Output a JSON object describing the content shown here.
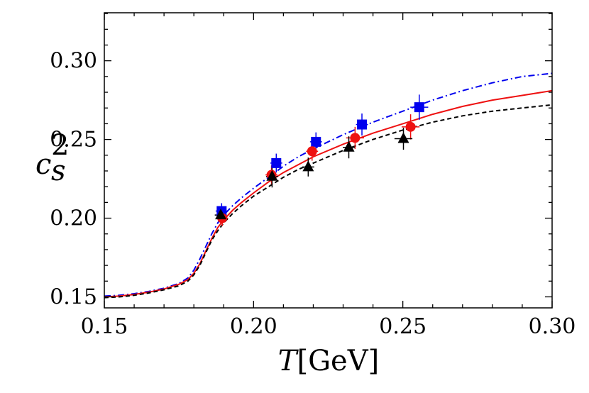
{
  "chart_data": {
    "type": "line",
    "title": "",
    "xlabel_italic": "T",
    "xlabel_unit": "[GeV]",
    "ylabel_base": "c",
    "ylabel_sub": "s",
    "ylabel_sup": "2",
    "xlim": [
      0.15,
      0.3
    ],
    "ylim": [
      0.143,
      0.3305
    ],
    "xticks": [
      0.15,
      0.2,
      0.25,
      0.3
    ],
    "yticks": [
      0.15,
      0.2,
      0.25,
      0.3
    ],
    "xtick_labels": [
      "0.15",
      "0.20",
      "0.25",
      "0.30"
    ],
    "ytick_labels": [
      "0.15",
      "0.20",
      "0.25",
      "0.30"
    ],
    "xminor_step": 0.01,
    "yminor_step": 0.01,
    "grid": false,
    "series": [
      {
        "name": "curve-blue",
        "color": "#0000ee",
        "style": "dashdot",
        "marker": "square",
        "curve": [
          [
            0.15,
            0.1505
          ],
          [
            0.155,
            0.151
          ],
          [
            0.16,
            0.152
          ],
          [
            0.165,
            0.1535
          ],
          [
            0.17,
            0.1555
          ],
          [
            0.175,
            0.1585
          ],
          [
            0.178,
            0.162
          ],
          [
            0.18,
            0.167
          ],
          [
            0.182,
            0.174
          ],
          [
            0.184,
            0.182
          ],
          [
            0.186,
            0.19
          ],
          [
            0.188,
            0.197
          ],
          [
            0.19,
            0.202
          ],
          [
            0.193,
            0.208
          ],
          [
            0.196,
            0.213
          ],
          [
            0.2,
            0.219
          ],
          [
            0.205,
            0.226
          ],
          [
            0.21,
            0.233
          ],
          [
            0.215,
            0.239
          ],
          [
            0.22,
            0.244
          ],
          [
            0.23,
            0.253
          ],
          [
            0.24,
            0.261
          ],
          [
            0.25,
            0.268
          ],
          [
            0.26,
            0.275
          ],
          [
            0.27,
            0.281
          ],
          [
            0.28,
            0.286
          ],
          [
            0.29,
            0.29
          ],
          [
            0.3,
            0.292
          ]
        ],
        "points": [
          {
            "x": 0.1893,
            "y": 0.2045,
            "xerr": 0.002,
            "yerr": 0.005
          },
          {
            "x": 0.2076,
            "y": 0.235,
            "xerr": 0.002,
            "yerr": 0.006
          },
          {
            "x": 0.2209,
            "y": 0.2485,
            "xerr": 0.002,
            "yerr": 0.006
          },
          {
            "x": 0.2363,
            "y": 0.2595,
            "xerr": 0.002,
            "yerr": 0.007
          },
          {
            "x": 0.2555,
            "y": 0.2705,
            "xerr": 0.003,
            "yerr": 0.008
          }
        ]
      },
      {
        "name": "curve-red",
        "color": "#ee1111",
        "style": "solid",
        "marker": "circle",
        "curve": [
          [
            0.15,
            0.15
          ],
          [
            0.155,
            0.1505
          ],
          [
            0.16,
            0.1515
          ],
          [
            0.165,
            0.153
          ],
          [
            0.17,
            0.155
          ],
          [
            0.175,
            0.158
          ],
          [
            0.178,
            0.161
          ],
          [
            0.18,
            0.165
          ],
          [
            0.182,
            0.171
          ],
          [
            0.184,
            0.179
          ],
          [
            0.186,
            0.187
          ],
          [
            0.188,
            0.194
          ],
          [
            0.19,
            0.199
          ],
          [
            0.193,
            0.205
          ],
          [
            0.196,
            0.21
          ],
          [
            0.2,
            0.216
          ],
          [
            0.205,
            0.223
          ],
          [
            0.21,
            0.229
          ],
          [
            0.215,
            0.234
          ],
          [
            0.22,
            0.239
          ],
          [
            0.23,
            0.247
          ],
          [
            0.24,
            0.254
          ],
          [
            0.25,
            0.26
          ],
          [
            0.26,
            0.266
          ],
          [
            0.27,
            0.271
          ],
          [
            0.28,
            0.275
          ],
          [
            0.29,
            0.278
          ],
          [
            0.3,
            0.281
          ]
        ],
        "points": [
          {
            "x": 0.1895,
            "y": 0.2,
            "xerr": 0.002,
            "yerr": 0.005
          },
          {
            "x": 0.206,
            "y": 0.2275,
            "xerr": 0.002,
            "yerr": 0.006
          },
          {
            "x": 0.2196,
            "y": 0.2425,
            "xerr": 0.002,
            "yerr": 0.006
          },
          {
            "x": 0.234,
            "y": 0.251,
            "xerr": 0.003,
            "yerr": 0.007
          },
          {
            "x": 0.2526,
            "y": 0.258,
            "xerr": 0.003,
            "yerr": 0.008
          }
        ]
      },
      {
        "name": "curve-black",
        "color": "#000000",
        "style": "dashed",
        "marker": "triangle",
        "curve": [
          [
            0.15,
            0.1495
          ],
          [
            0.155,
            0.15
          ],
          [
            0.16,
            0.151
          ],
          [
            0.165,
            0.1525
          ],
          [
            0.17,
            0.1545
          ],
          [
            0.175,
            0.157
          ],
          [
            0.178,
            0.16
          ],
          [
            0.18,
            0.164
          ],
          [
            0.182,
            0.17
          ],
          [
            0.184,
            0.178
          ],
          [
            0.186,
            0.186
          ],
          [
            0.188,
            0.192
          ],
          [
            0.19,
            0.197
          ],
          [
            0.193,
            0.203
          ],
          [
            0.196,
            0.208
          ],
          [
            0.2,
            0.214
          ],
          [
            0.205,
            0.22
          ],
          [
            0.21,
            0.226
          ],
          [
            0.215,
            0.231
          ],
          [
            0.22,
            0.235
          ],
          [
            0.23,
            0.243
          ],
          [
            0.24,
            0.25
          ],
          [
            0.25,
            0.256
          ],
          [
            0.26,
            0.261
          ],
          [
            0.27,
            0.265
          ],
          [
            0.28,
            0.268
          ],
          [
            0.29,
            0.27
          ],
          [
            0.3,
            0.272
          ]
        ],
        "points": [
          {
            "x": 0.189,
            "y": 0.202,
            "xerr": 0.002,
            "yerr": 0.005
          },
          {
            "x": 0.2062,
            "y": 0.2265,
            "xerr": 0.002,
            "yerr": 0.007
          },
          {
            "x": 0.2183,
            "y": 0.2325,
            "xerr": 0.002,
            "yerr": 0.006
          },
          {
            "x": 0.2319,
            "y": 0.245,
            "xerr": 0.002,
            "yerr": 0.007
          },
          {
            "x": 0.2502,
            "y": 0.2505,
            "xerr": 0.003,
            "yerr": 0.007
          }
        ]
      }
    ]
  }
}
